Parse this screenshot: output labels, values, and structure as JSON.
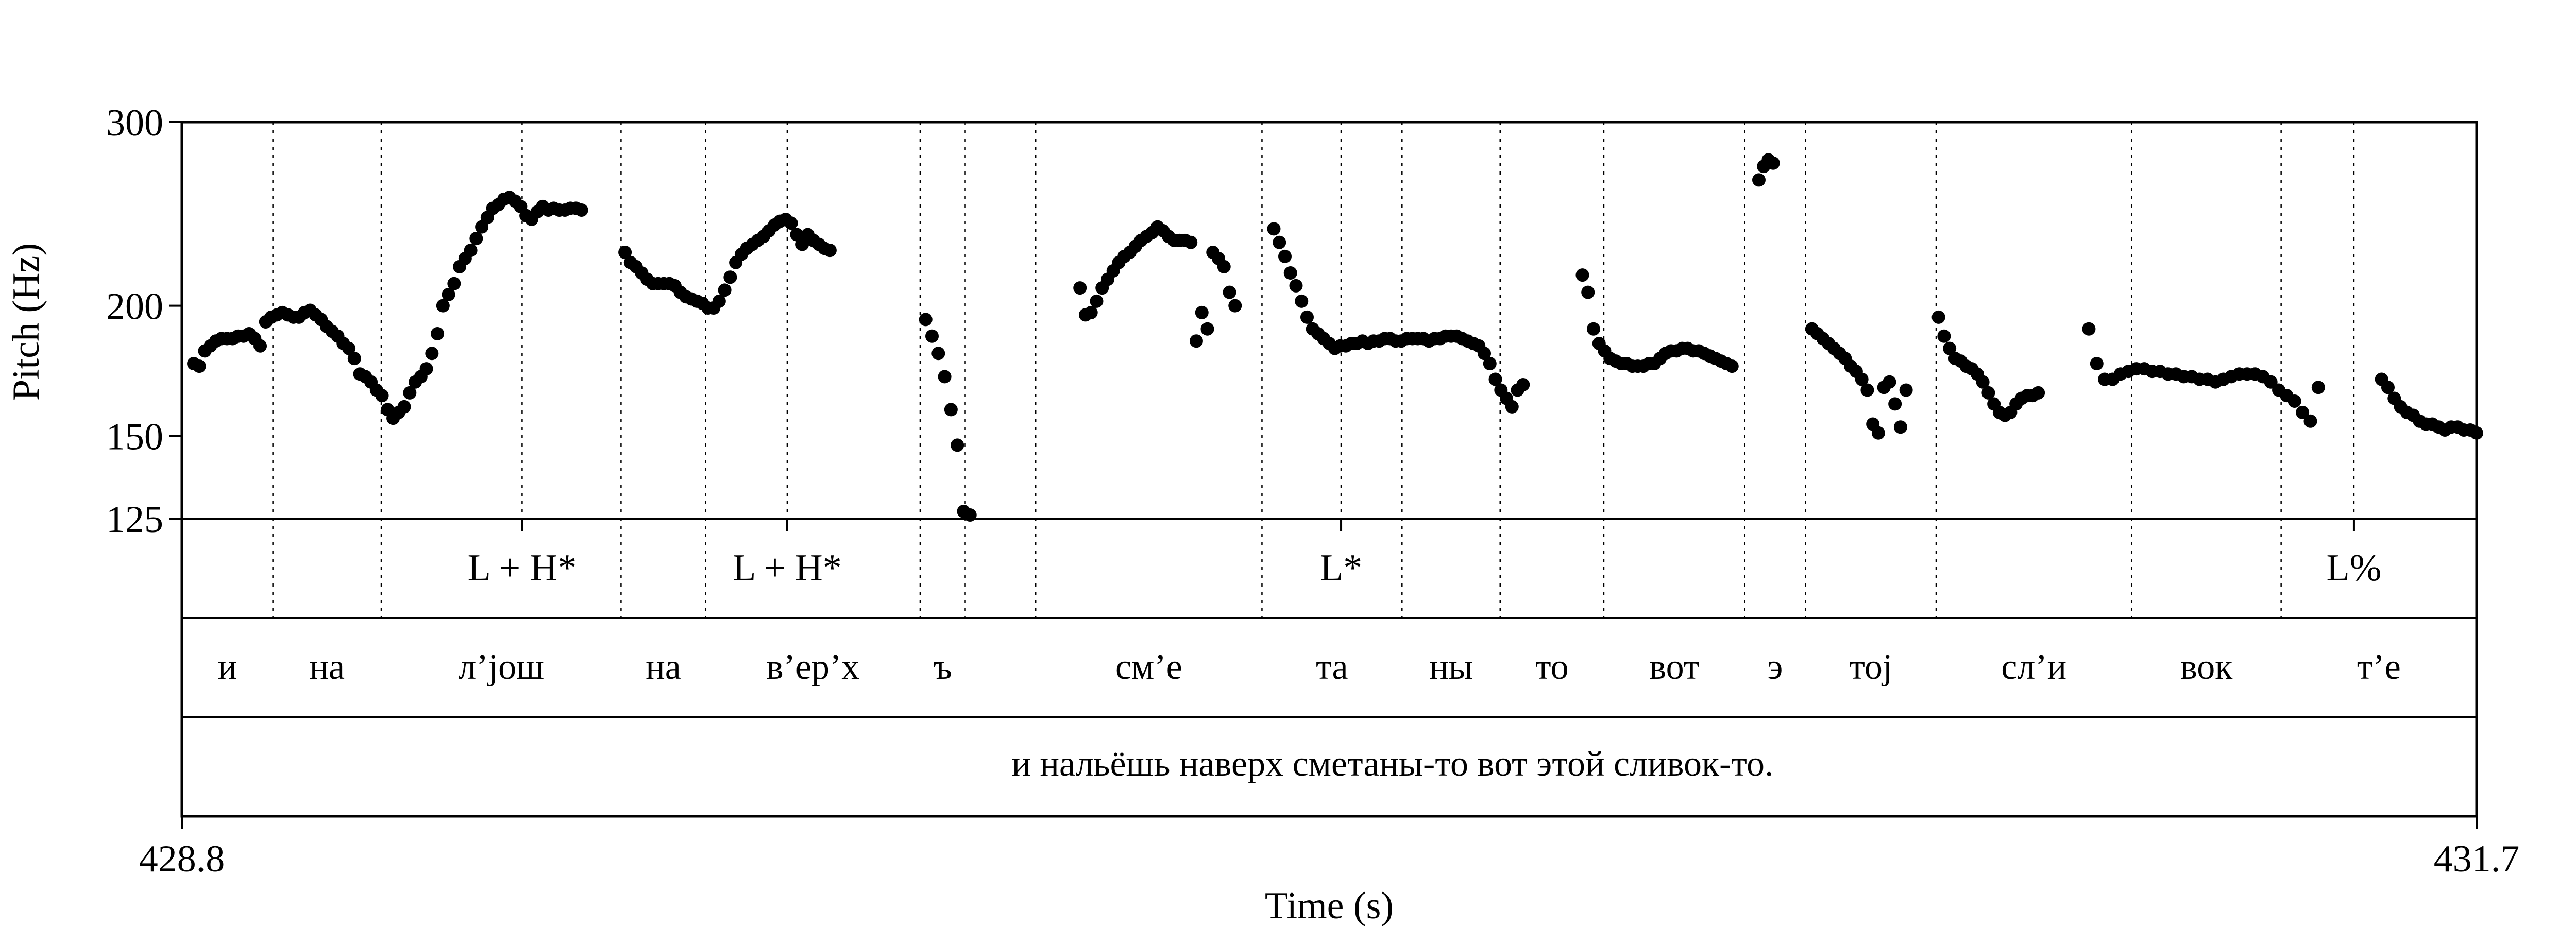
{
  "chart_data": {
    "type": "scatter",
    "xlabel": "Time (s)",
    "ylabel": "Pitch (Hz)",
    "xlim": [
      428.8,
      431.7
    ],
    "ylim": [
      125,
      300
    ],
    "y_scale": "log",
    "x_tick_labels": [
      "428.8",
      "431.7"
    ],
    "y_ticks": [
      125,
      150,
      200,
      300
    ],
    "y_tick_labels": [
      "125",
      "150",
      "200",
      "300"
    ],
    "tones": [
      {
        "label": "L + H*",
        "time": 429.23
      },
      {
        "label": "L + H*",
        "time": 429.565
      },
      {
        "label": "L*",
        "time": 430.265
      },
      {
        "label": "L%",
        "time": 431.545
      }
    ],
    "segments": [
      {
        "label": "и",
        "start": 428.8,
        "end": 428.915
      },
      {
        "label": "на",
        "start": 428.915,
        "end": 429.052
      },
      {
        "label": "л’jош",
        "start": 429.052,
        "end": 429.355
      },
      {
        "label": "на",
        "start": 429.355,
        "end": 429.462
      },
      {
        "label": "в’ер’х",
        "start": 429.462,
        "end": 429.733
      },
      {
        "label": "ъ",
        "start": 429.733,
        "end": 429.79
      },
      {
        "label": "",
        "start": 429.79,
        "end": 429.879
      },
      {
        "label": "см’е",
        "start": 429.879,
        "end": 430.165
      },
      {
        "label": "та",
        "start": 430.165,
        "end": 430.342
      },
      {
        "label": "ны",
        "start": 430.342,
        "end": 430.466
      },
      {
        "label": "то",
        "start": 430.466,
        "end": 430.597
      },
      {
        "label": "вот",
        "start": 430.597,
        "end": 430.775
      },
      {
        "label": "э",
        "start": 430.775,
        "end": 430.852
      },
      {
        "label": "тоj",
        "start": 430.852,
        "end": 431.017
      },
      {
        "label": "сл’и",
        "start": 431.017,
        "end": 431.264
      },
      {
        "label": "вок",
        "start": 431.264,
        "end": 431.453
      },
      {
        "label": "т’е",
        "start": 431.453,
        "end": 431.7
      }
    ],
    "phrase": "и нальёшь наверх сметаны-то вот этой сливок-то.",
    "series": [
      {
        "x": [
          428.815,
          428.822,
          428.829,
          428.836,
          428.843,
          428.85,
          428.857,
          428.864,
          428.871,
          428.878,
          428.885,
          428.892,
          428.899,
          428.906,
          428.913,
          428.92,
          428.927,
          428.934,
          428.941,
          428.948,
          428.955,
          428.962,
          428.969,
          428.976,
          428.983,
          428.99,
          428.997,
          429.004,
          429.011,
          429.018,
          429.025,
          429.032,
          429.039,
          429.046,
          429.053,
          429.06,
          429.067,
          429.074,
          429.081,
          429.088,
          429.095,
          429.102,
          429.109,
          429.116,
          429.123,
          429.13,
          429.137,
          429.144,
          429.151,
          429.158,
          429.165,
          429.172,
          429.179,
          429.186,
          429.193,
          429.2,
          429.207,
          429.214,
          429.221,
          429.228,
          429.235,
          429.242,
          429.249,
          429.256,
          429.263,
          429.27,
          429.277,
          429.284,
          429.291,
          429.298,
          429.305
        ],
        "values": [
          176,
          175,
          181,
          183,
          185,
          186,
          186,
          186,
          187,
          187,
          188,
          186,
          183,
          193,
          195,
          196,
          197,
          196,
          195,
          195,
          197,
          198,
          196,
          194,
          191,
          189,
          187,
          184,
          182,
          178,
          172,
          171,
          169,
          166,
          164,
          159,
          156,
          158,
          160,
          165,
          169,
          171,
          174,
          180,
          188,
          200,
          205,
          210,
          218,
          222,
          226,
          232,
          238,
          243,
          248,
          250,
          253,
          254,
          252,
          249,
          244,
          242,
          246,
          249,
          247,
          248,
          247,
          247,
          248,
          248,
          247
        ]
      },
      {
        "x": [
          429.36,
          429.367,
          429.374,
          429.381,
          429.388,
          429.395,
          429.402,
          429.409,
          429.416,
          429.423,
          429.43,
          429.437,
          429.444,
          429.451,
          429.458,
          429.465,
          429.472,
          429.479,
          429.486,
          429.493,
          429.5,
          429.507,
          429.514,
          429.521,
          429.528,
          429.535,
          429.542,
          429.549,
          429.556,
          429.563,
          429.57,
          429.577,
          429.584,
          429.591,
          429.598,
          429.605,
          429.612,
          429.619
        ],
        "values": [
          225,
          220,
          218,
          215,
          212,
          210,
          210,
          210,
          210,
          209,
          206,
          204,
          203,
          202,
          201,
          199,
          199,
          202,
          207,
          213,
          220,
          224,
          227,
          229,
          231,
          233,
          236,
          239,
          241,
          242,
          240,
          234,
          229,
          234,
          231,
          229,
          227,
          226
        ]
      },
      {
        "x": [
          429.74,
          429.748,
          429.756,
          429.764,
          429.772,
          429.78,
          429.788,
          429.796
        ],
        "values": [
          194,
          187,
          180,
          171,
          159,
          147,
          127,
          126
        ]
      },
      {
        "x": [
          429.935,
          429.942,
          429.949,
          429.956,
          429.963,
          429.97,
          429.977,
          429.984,
          429.991,
          429.998,
          430.005,
          430.012,
          430.019,
          430.026,
          430.033,
          430.04,
          430.047,
          430.054,
          430.061,
          430.068,
          430.075,
          430.082,
          430.089,
          430.096,
          430.103,
          430.11,
          430.117,
          430.124,
          430.131
        ],
        "values": [
          208,
          196,
          197,
          202,
          208,
          212,
          216,
          220,
          223,
          225,
          228,
          231,
          233,
          235,
          238,
          236,
          233,
          231,
          231,
          231,
          230,
          185,
          197,
          190,
          225,
          222,
          218,
          206,
          200
        ]
      },
      {
        "x": [
          430.18,
          430.187,
          430.194,
          430.201,
          430.208,
          430.215,
          430.222,
          430.229,
          430.236,
          430.243,
          430.25,
          430.257,
          430.264,
          430.271,
          430.278,
          430.285,
          430.292,
          430.299,
          430.306,
          430.313,
          430.32,
          430.327,
          430.334,
          430.341,
          430.348,
          430.355,
          430.362,
          430.369,
          430.376,
          430.383,
          430.39,
          430.397,
          430.404,
          430.411,
          430.418,
          430.425,
          430.432,
          430.439,
          430.446,
          430.453,
          430.46,
          430.467,
          430.474,
          430.481,
          430.488,
          430.495
        ],
        "values": [
          237,
          230,
          223,
          215,
          209,
          202,
          195,
          190,
          188,
          186,
          184,
          182,
          183,
          183,
          184,
          184,
          185,
          184,
          185,
          185,
          186,
          186,
          185,
          185,
          186,
          186,
          186,
          186,
          185,
          186,
          186,
          187,
          187,
          187,
          186,
          185,
          184,
          183,
          180,
          176,
          170,
          166,
          163,
          160,
          166,
          168
        ]
      },
      {
        "x": [
          430.57,
          430.577,
          430.584,
          430.591,
          430.598,
          430.605,
          430.612,
          430.619,
          430.626,
          430.633,
          430.64,
          430.647,
          430.654,
          430.661,
          430.668,
          430.675,
          430.682,
          430.689,
          430.696,
          430.703,
          430.71,
          430.717,
          430.724,
          430.731,
          430.738,
          430.745,
          430.752,
          430.759
        ],
        "values": [
          214,
          206,
          190,
          184,
          181,
          178,
          177,
          176,
          176,
          175,
          175,
          175,
          176,
          176,
          178,
          180,
          181,
          181,
          182,
          182,
          181,
          181,
          180,
          179,
          178,
          177,
          176,
          175
        ]
      },
      {
        "x": [
          430.793,
          430.799,
          430.805,
          430.811
        ],
        "values": [
          264,
          272,
          276,
          274
        ]
      },
      {
        "x": [
          430.86,
          430.867,
          430.874,
          430.881,
          430.888,
          430.895,
          430.902,
          430.909,
          430.916,
          430.923,
          430.93,
          430.937,
          430.944,
          430.951,
          430.958,
          430.965,
          430.972,
          430.979
        ],
        "values": [
          190,
          188,
          186,
          184,
          182,
          180,
          178,
          175,
          173,
          170,
          166,
          154,
          151,
          167,
          169,
          161,
          153,
          166
        ]
      },
      {
        "x": [
          431.02,
          431.027,
          431.034,
          431.041,
          431.048,
          431.055,
          431.062,
          431.069,
          431.076,
          431.083,
          431.09,
          431.097,
          431.104,
          431.111,
          431.118,
          431.125,
          431.132,
          431.139,
          431.146
        ],
        "values": [
          195,
          187,
          182,
          178,
          177,
          175,
          174,
          172,
          169,
          165,
          161,
          158,
          157,
          158,
          161,
          163,
          164,
          164,
          165
        ]
      },
      {
        "x": [
          431.21,
          431.22,
          431.23,
          431.24,
          431.25,
          431.26,
          431.27,
          431.28,
          431.29,
          431.3,
          431.31,
          431.32,
          431.33,
          431.34,
          431.35,
          431.36,
          431.37,
          431.38,
          431.39,
          431.4,
          431.41,
          431.42,
          431.43,
          431.44,
          431.45,
          431.46,
          431.47,
          431.48,
          431.49,
          431.5
        ],
        "values": [
          190,
          176,
          170,
          170,
          172,
          173,
          174,
          174,
          173,
          173,
          172,
          172,
          171,
          171,
          170,
          170,
          169,
          170,
          171,
          172,
          172,
          172,
          171,
          169,
          166,
          164,
          162,
          158,
          155,
          167
        ]
      },
      {
        "x": [
          431.58,
          431.588,
          431.596,
          431.604,
          431.612,
          431.62,
          431.628,
          431.636,
          431.644,
          431.652,
          431.66,
          431.668,
          431.676,
          431.684,
          431.692,
          431.7,
          431.708,
          431.716,
          431.724,
          431.732,
          431.74
        ],
        "values": [
          170,
          167,
          163,
          160,
          158,
          157,
          155,
          154,
          154,
          153,
          152,
          153,
          153,
          152,
          152,
          151,
          151,
          152,
          156,
          154,
          152
        ]
      }
    ]
  }
}
